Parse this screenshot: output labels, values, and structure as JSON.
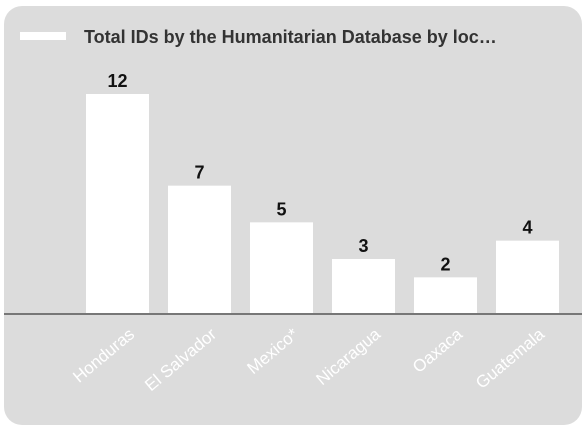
{
  "chart_data": {
    "type": "bar",
    "title": "Total IDs by the Humanitarian Database by loc…",
    "categories": [
      "Honduras",
      "El Salvador",
      "Mexico*",
      "Nicaragua",
      "Oaxaca",
      "Guatemala"
    ],
    "values": [
      12,
      7,
      5,
      3,
      2,
      4
    ],
    "ylim": [
      0,
      12
    ],
    "grid": false,
    "legend": "top-left",
    "colors": {
      "bar": "#ffffff",
      "background": "#dcdcdc",
      "axis": "#777777",
      "text": "#333333"
    }
  }
}
